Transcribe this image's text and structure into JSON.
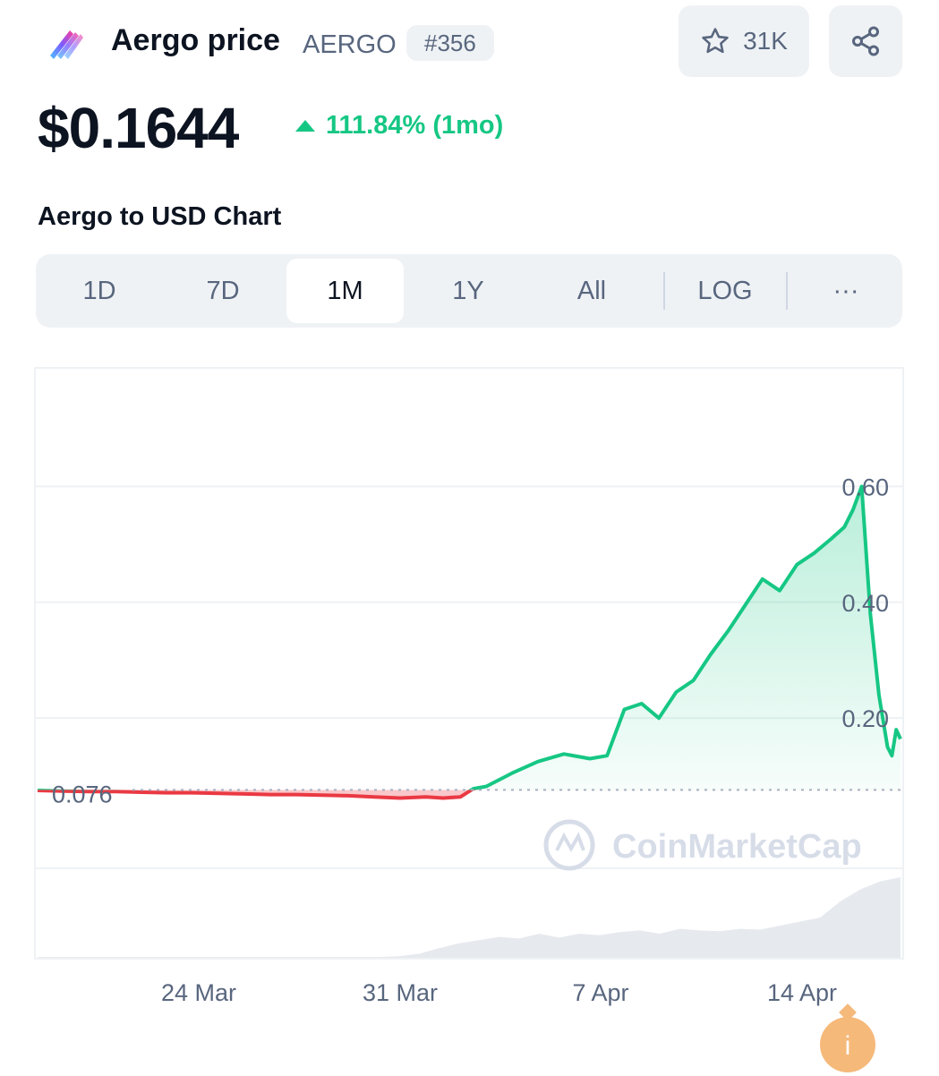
{
  "header": {
    "name": "Aergo price",
    "symbol": "AERGO",
    "rank": "#356",
    "watchlist_count": "31K",
    "logo_icon": "aergo-logo-icon"
  },
  "price": {
    "value": "$0.1644",
    "change": "111.84% (1mo)",
    "change_direction": "up",
    "up_color": "#16c784",
    "down_color": "#ea3943"
  },
  "chart_section": {
    "title": "Aergo to USD Chart",
    "tabs": [
      "1D",
      "7D",
      "1M",
      "1Y",
      "All",
      "LOG",
      "···"
    ],
    "active_tab": "1M"
  },
  "chart_data": {
    "type": "area",
    "title": "Aergo to USD Chart",
    "x_ticks": [
      "24 Mar",
      "31 Mar",
      "7 Apr",
      "14 Apr"
    ],
    "y_ticks": [
      "0.20",
      "0.40",
      "0.60"
    ],
    "ylim": [
      -0.08,
      0.8
    ],
    "reference_value": 0.076,
    "reference_label": "0.076",
    "watermark": "CoinMarketCap",
    "grid": true,
    "series": [
      {
        "x": [
          0.0,
          0.03,
          0.06,
          0.09,
          0.12,
          0.15,
          0.18,
          0.21,
          0.24,
          0.27,
          0.3,
          0.33,
          0.36,
          0.39,
          0.42,
          0.45,
          0.47,
          0.49,
          0.505,
          0.52,
          0.55,
          0.58,
          0.61,
          0.64,
          0.66,
          0.68,
          0.7,
          0.72,
          0.74,
          0.76,
          0.78,
          0.8,
          0.82,
          0.84,
          0.86,
          0.88,
          0.9,
          0.92,
          0.935,
          0.945,
          0.955,
          0.965,
          0.975,
          0.985,
          0.99,
          0.995,
          1.0
        ],
        "y": [
          0.075,
          0.074,
          0.073,
          0.073,
          0.072,
          0.071,
          0.071,
          0.07,
          0.069,
          0.068,
          0.068,
          0.067,
          0.066,
          0.064,
          0.062,
          0.064,
          0.062,
          0.064,
          0.078,
          0.082,
          0.105,
          0.125,
          0.138,
          0.13,
          0.135,
          0.215,
          0.225,
          0.2,
          0.245,
          0.265,
          0.31,
          0.35,
          0.395,
          0.44,
          0.42,
          0.465,
          0.485,
          0.51,
          0.53,
          0.56,
          0.6,
          0.38,
          0.24,
          0.15,
          0.135,
          0.18,
          0.164
        ]
      }
    ],
    "volume": [
      0.01,
      0.01,
      0.01,
      0.01,
      0.01,
      0.01,
      0.01,
      0.01,
      0.01,
      0.01,
      0.01,
      0.01,
      0.01,
      0.01,
      0.01,
      0.01,
      0.01,
      0.01,
      0.02,
      0.05,
      0.12,
      0.18,
      0.22,
      0.26,
      0.24,
      0.3,
      0.25,
      0.3,
      0.28,
      0.32,
      0.34,
      0.3,
      0.36,
      0.34,
      0.33,
      0.36,
      0.35,
      0.4,
      0.45,
      0.5,
      0.7,
      0.85,
      0.95,
      1.0
    ]
  }
}
